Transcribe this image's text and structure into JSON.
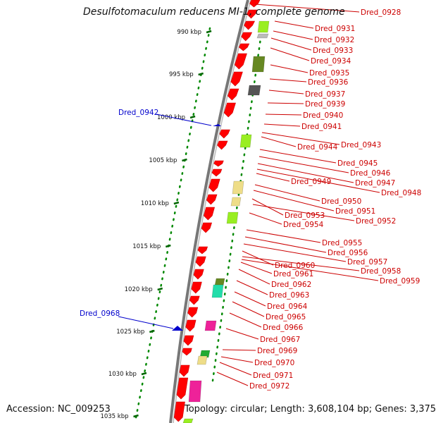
{
  "title": "Desulfotomaculum reducens MI-1, complete genome",
  "footer": {
    "accession": "Accession: NC_009253",
    "summary": "Topology: circular; Length: 3,608,104 bp; Genes: 3,375"
  },
  "ticks": [
    "990 kbp",
    "995 kbp",
    "1000 kbp",
    "1005 kbp",
    "1010 kbp",
    "1015 kbp",
    "1020 kbp",
    "1025 kbp",
    "1030 kbp",
    "1035 kbp"
  ],
  "gene_labels": [
    "Dred_0928",
    "Dred_0931",
    "Dred_0932",
    "Dred_0933",
    "Dred_0934",
    "Dred_0935",
    "Dred_0936",
    "Dred_0937",
    "Dred_0939",
    "Dred_0940",
    "Dred_0941",
    "Dred_0944",
    "Dred_0943",
    "Dred_0945",
    "Dred_0946",
    "Dred_0947",
    "Dred_0949",
    "Dred_0948",
    "Dred_0950",
    "Dred_0951",
    "Dred_0953",
    "Dred_0952",
    "Dred_0954",
    "Dred_0955",
    "Dred_0956",
    "Dred_0957",
    "Dred_0960",
    "Dred_0958",
    "Dred_0961",
    "Dred_0959",
    "Dred_0962",
    "Dred_0963",
    "Dred_0964",
    "Dred_0965",
    "Dred_0966",
    "Dred_0967",
    "Dred_0969",
    "Dred_0970",
    "Dred_0971",
    "Dred_0972"
  ],
  "blue_labels": [
    "Dred_0942",
    "Dred_0968"
  ],
  "colors": {
    "gene_red": "#ff0000",
    "label_red": "#cc0000",
    "blue": "#0000cc",
    "backbone": "#888888",
    "tick_green": "#006600",
    "dot_green": "#008800",
    "lime": "#99ee22",
    "olive": "#668822",
    "gray_block": "#555555",
    "tan": "#eedd88",
    "teal": "#22ddaa",
    "magenta": "#ee2299",
    "green": "#22aa33"
  }
}
